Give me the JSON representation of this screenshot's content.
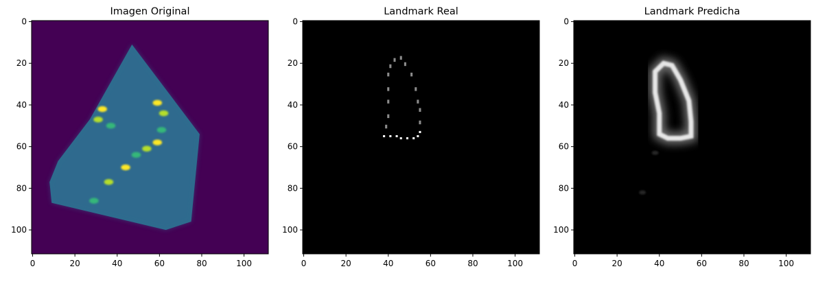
{
  "chart_data": [
    {
      "type": "heatmap",
      "title": "Imagen Original",
      "image_shape": [
        112,
        112
      ],
      "colormap": "viridis",
      "x_ticks": [
        0,
        20,
        40,
        60,
        80,
        100
      ],
      "y_ticks": [
        0,
        20,
        40,
        60,
        80,
        100
      ],
      "content": {
        "sector_polygon": [
          [
            47,
            11
          ],
          [
            79,
            54
          ],
          [
            75,
            96
          ],
          [
            63,
            100
          ],
          [
            9,
            87
          ],
          [
            8,
            77
          ],
          [
            12,
            67
          ],
          [
            27,
            47
          ]
        ],
        "bright_spots": [
          [
            33,
            42
          ],
          [
            31,
            47
          ],
          [
            37,
            50
          ],
          [
            59,
            39
          ],
          [
            62,
            44
          ],
          [
            61,
            52
          ],
          [
            59,
            58
          ],
          [
            54,
            61
          ],
          [
            49,
            64
          ],
          [
            44,
            70
          ],
          [
            36,
            77
          ],
          [
            29,
            86
          ]
        ]
      }
    },
    {
      "type": "heatmap",
      "title": "Landmark Real",
      "image_shape": [
        112,
        112
      ],
      "colormap": "gray",
      "x_ticks": [
        0,
        20,
        40,
        60,
        80,
        100
      ],
      "y_ticks": [
        0,
        20,
        40,
        60,
        80,
        100
      ],
      "content": {
        "contour": [
          [
            41,
            55
          ],
          [
            44,
            55
          ],
          [
            46,
            56
          ],
          [
            49,
            56
          ],
          [
            52,
            56
          ],
          [
            54,
            55
          ],
          [
            55,
            53
          ],
          [
            55,
            48
          ],
          [
            55,
            42
          ],
          [
            54,
            38
          ],
          [
            53,
            32
          ],
          [
            51,
            25
          ],
          [
            48,
            20
          ],
          [
            46,
            17
          ],
          [
            43,
            18
          ],
          [
            41,
            21
          ],
          [
            40,
            25
          ],
          [
            40,
            32
          ],
          [
            40,
            38
          ],
          [
            40,
            45
          ],
          [
            39,
            50
          ],
          [
            38,
            55
          ]
        ]
      }
    },
    {
      "type": "heatmap",
      "title": "Landmark Predicha",
      "image_shape": [
        112,
        112
      ],
      "colormap": "gray",
      "x_ticks": [
        0,
        20,
        40,
        60,
        80,
        100
      ],
      "y_ticks": [
        0,
        20,
        40,
        60,
        80,
        100
      ],
      "content": {
        "contour": [
          [
            42,
            20
          ],
          [
            38,
            24
          ],
          [
            38,
            34
          ],
          [
            40,
            44
          ],
          [
            40,
            54
          ],
          [
            44,
            56
          ],
          [
            50,
            56
          ],
          [
            55,
            55
          ],
          [
            55,
            48
          ],
          [
            54,
            38
          ],
          [
            50,
            28
          ],
          [
            46,
            21
          ]
        ],
        "faint_spots": [
          [
            32,
            82
          ],
          [
            38,
            63
          ]
        ]
      }
    }
  ]
}
